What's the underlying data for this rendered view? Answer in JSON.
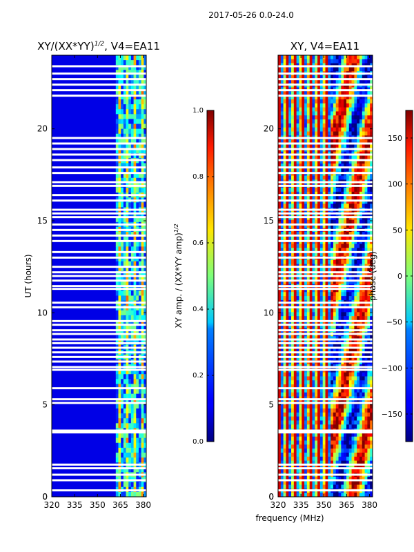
{
  "figure": {
    "suptitle": "2017-05-26 0.0-24.0",
    "xlabel": "frequency (MHz)"
  },
  "chart_data": [
    {
      "type": "heatmap",
      "title": "XY/(XX*YY)",
      "title_superscript": "1/2",
      "title_suffix": ", V4=EA11",
      "ylabel": "UT (hours)",
      "xlim": [
        320,
        382
      ],
      "ylim": [
        0,
        24
      ],
      "xticks": [
        320,
        335,
        350,
        365,
        380
      ],
      "yticks": [
        0,
        5,
        10,
        15,
        20
      ],
      "colormap": "jet",
      "colorbar": {
        "label_main": "XY amp. / (XX*YY amp)",
        "label_superscript": "1/2",
        "range": [
          0.0,
          1.0
        ],
        "ticks": [
          "0.0",
          "0.2",
          "0.4",
          "0.6",
          "0.8",
          "1.0"
        ]
      },
      "description_values": {
        "background_level": 0.02,
        "band_start_mhz": 362,
        "band_level_range": [
          0.15,
          0.75
        ]
      }
    },
    {
      "type": "heatmap",
      "title": "XY, V4=EA11",
      "ylabel": "",
      "xlim": [
        320,
        382
      ],
      "ylim": [
        0,
        24
      ],
      "xticks": [
        320,
        335,
        350,
        365,
        380
      ],
      "yticks": [
        0,
        5,
        10,
        15,
        20
      ],
      "colormap": "jet",
      "colorbar": {
        "label": "phase (deg)",
        "range": [
          -180,
          180
        ],
        "ticks": [
          "−150",
          "−100",
          "−50",
          "0",
          "50",
          "100",
          "150"
        ],
        "tick_values": [
          -150,
          -100,
          -50,
          0,
          50,
          100,
          150
        ]
      }
    }
  ],
  "flagged_times_hours": [
    0.35,
    0.9,
    1.2,
    1.55,
    1.75,
    3.5,
    3.6,
    5.1,
    5.3,
    5.9,
    6.9,
    7.05,
    7.35,
    7.6,
    7.85,
    8.1,
    8.35,
    8.55,
    8.85,
    9.05,
    9.35,
    9.55,
    10.3,
    10.55,
    11.3,
    11.45,
    11.75,
    12.0,
    12.2,
    12.5,
    13.0,
    13.3,
    13.9,
    14.2,
    14.5,
    14.8,
    15.2,
    15.4,
    15.6,
    16.1,
    16.4,
    16.9,
    17.1,
    17.6,
    17.9,
    18.3,
    18.6,
    18.9,
    19.2,
    19.5,
    21.8,
    22.1,
    22.4,
    22.7,
    23.0,
    23.4
  ]
}
